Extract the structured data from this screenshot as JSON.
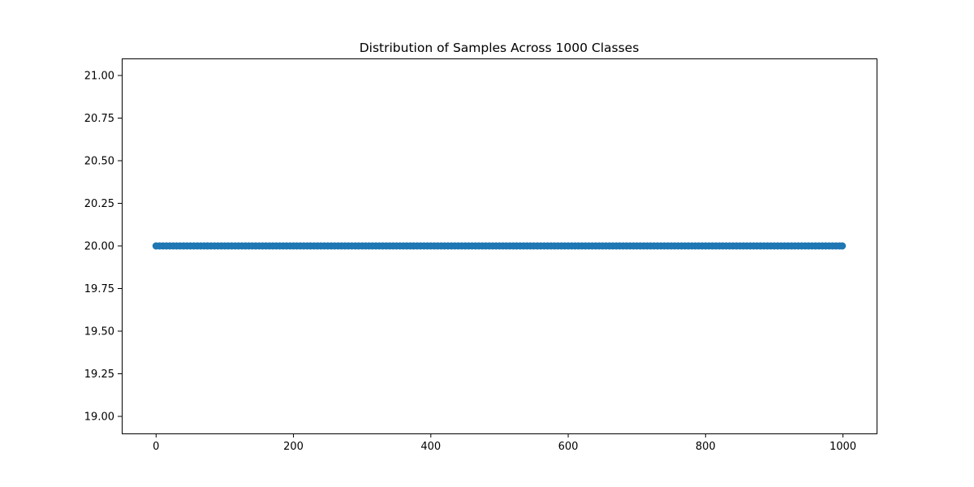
{
  "chart_data": {
    "type": "scatter",
    "title": "Distribution of Samples Across 1000 Classes",
    "xlabel": "",
    "ylabel": "",
    "x_range": [
      0,
      999
    ],
    "y_constant": 20.0,
    "xlim": [
      -50,
      1049
    ],
    "ylim": [
      18.9,
      21.1
    ],
    "xticks": [
      0,
      200,
      400,
      600,
      800,
      1000
    ],
    "xtick_labels": [
      "0",
      "200",
      "400",
      "600",
      "800",
      "1000"
    ],
    "yticks": [
      19.0,
      19.25,
      19.5,
      19.75,
      20.0,
      20.25,
      20.5,
      20.75,
      21.0
    ],
    "ytick_labels": [
      "19.00",
      "19.25",
      "19.50",
      "19.75",
      "20.00",
      "20.25",
      "20.50",
      "20.75",
      "21.00"
    ],
    "point_step": 5,
    "grid": false,
    "legend": "none",
    "color": "#1f77b4"
  }
}
